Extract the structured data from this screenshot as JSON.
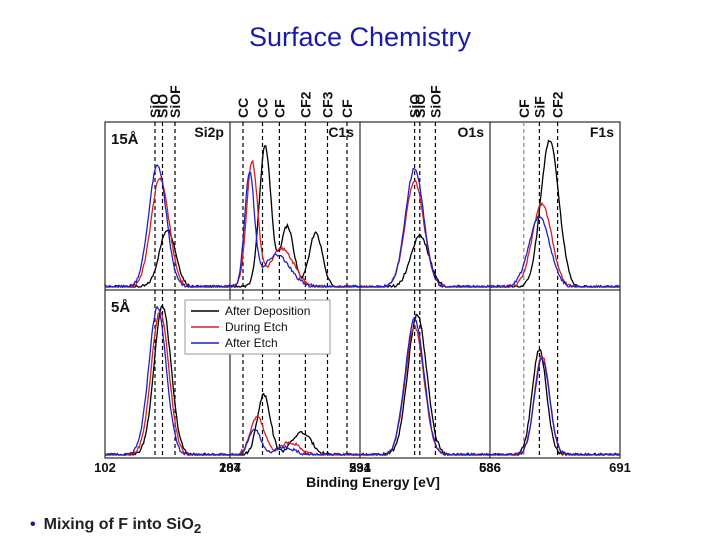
{
  "page_title": "Surface Chemistry",
  "bullet_text": "Mixing of F into SiO",
  "bullet_sub": "2",
  "chart_data": {
    "type": "line",
    "xlabel": "Binding Energy [eV]",
    "colors": {
      "After Deposition": "#000000",
      "During Etch": "#d42020",
      "After Etch": "#2020c8"
    },
    "legend": {
      "placement": "top-left of bottom row",
      "entries": [
        "After Deposition",
        "During Etch",
        "After Etch"
      ]
    },
    "row_labels": [
      "15Å",
      "5Å"
    ],
    "panels": [
      {
        "id": "si2p",
        "label": "Si2p",
        "xlim": [
          102,
          107
        ],
        "ticks": [
          {
            "value": 102,
            "label": "102"
          },
          {
            "value": 107,
            "label": "107"
          }
        ],
        "ref_lines": [
          {
            "x": 104.0,
            "style": "dashed"
          },
          {
            "x": 104.3,
            "style": "dashed"
          },
          {
            "x": 104.8,
            "style": "dashed"
          }
        ],
        "ref_labels": [
          "SiO",
          "SiO",
          "SiOF"
        ],
        "rows": [
          {
            "peaks": [
              {
                "series": "After Deposition",
                "center": 104.5,
                "height": 0.36,
                "width": 0.65
              },
              {
                "series": "During Etch",
                "center": 104.2,
                "height": 0.68,
                "width": 0.72
              },
              {
                "series": "After Etch",
                "center": 104.1,
                "height": 0.76,
                "width": 0.7
              }
            ]
          },
          {
            "peaks": [
              {
                "series": "After Deposition",
                "center": 104.3,
                "height": 0.93,
                "width": 0.68
              },
              {
                "series": "During Etch",
                "center": 104.2,
                "height": 0.9,
                "width": 0.7
              },
              {
                "series": "After Etch",
                "center": 104.1,
                "height": 0.92,
                "width": 0.7
              }
            ]
          }
        ]
      },
      {
        "id": "c1s",
        "label": "C1s",
        "xlim": [
          284,
          294
        ],
        "ticks": [
          {
            "value": 284,
            "label": "284"
          },
          {
            "value": 294,
            "label": "294"
          }
        ],
        "ref_lines": [
          {
            "x": 285.0,
            "style": "dashed"
          },
          {
            "x": 286.5,
            "style": "dashed"
          },
          {
            "x": 287.8,
            "style": "dashed"
          },
          {
            "x": 289.8,
            "style": "dashed"
          },
          {
            "x": 291.5,
            "style": "dashed"
          },
          {
            "x": 293.0,
            "style": "dashed"
          }
        ],
        "ref_labels": [
          "CC",
          "CC",
          "CF",
          "CF2",
          "CF3",
          "CF"
        ],
        "rows": [
          {
            "peaks": [
              {
                "series": "After Deposition",
                "center": 286.7,
                "height": 0.88,
                "width": 0.9
              },
              {
                "series": "After Deposition",
                "center": 288.4,
                "height": 0.38,
                "width": 1.0
              },
              {
                "series": "After Deposition",
                "center": 290.6,
                "height": 0.34,
                "width": 1.0
              },
              {
                "series": "During Etch",
                "center": 285.7,
                "height": 0.78,
                "width": 0.85
              },
              {
                "series": "During Etch",
                "center": 288.0,
                "height": 0.24,
                "width": 1.8
              },
              {
                "series": "After Etch",
                "center": 285.5,
                "height": 0.7,
                "width": 0.75
              },
              {
                "series": "After Etch",
                "center": 287.6,
                "height": 0.2,
                "width": 2.0
              }
            ]
          },
          {
            "peaks": [
              {
                "series": "After Deposition",
                "center": 286.6,
                "height": 0.38,
                "width": 1.0
              },
              {
                "series": "After Deposition",
                "center": 289.5,
                "height": 0.14,
                "width": 1.5
              },
              {
                "series": "During Etch",
                "center": 286.1,
                "height": 0.24,
                "width": 1.1
              },
              {
                "series": "During Etch",
                "center": 288.6,
                "height": 0.08,
                "width": 1.5
              },
              {
                "series": "After Etch",
                "center": 285.9,
                "height": 0.16,
                "width": 0.9
              },
              {
                "series": "After Etch",
                "center": 288.2,
                "height": 0.05,
                "width": 1.5
              }
            ]
          }
        ]
      },
      {
        "id": "o1s",
        "label": "O1s",
        "xlim": [
          531,
          536
        ],
        "ticks": [
          {
            "value": 531,
            "label": "531"
          },
          {
            "value": 536,
            "label": "536"
          }
        ],
        "ref_lines": [
          {
            "x": 533.1,
            "style": "dashed"
          },
          {
            "x": 533.3,
            "style": "dashed"
          },
          {
            "x": 533.9,
            "style": "dashed"
          }
        ],
        "ref_labels": [
          "SiO",
          "SiO",
          "SiOF"
        ],
        "rows": [
          {
            "peaks": [
              {
                "series": "After Deposition",
                "center": 533.3,
                "height": 0.32,
                "width": 0.7
              },
              {
                "series": "During Etch",
                "center": 533.1,
                "height": 0.66,
                "width": 0.72
              },
              {
                "series": "After Etch",
                "center": 533.1,
                "height": 0.74,
                "width": 0.7
              }
            ]
          },
          {
            "peaks": [
              {
                "series": "After Deposition",
                "center": 533.2,
                "height": 0.88,
                "width": 0.72
              },
              {
                "series": "During Etch",
                "center": 533.1,
                "height": 0.8,
                "width": 0.72
              },
              {
                "series": "After Etch",
                "center": 533.1,
                "height": 0.85,
                "width": 0.72
              }
            ]
          }
        ]
      },
      {
        "id": "f1s",
        "label": "F1s",
        "xlim": [
          686,
          691
        ],
        "ticks": [
          {
            "value": 686,
            "label": "686"
          },
          {
            "value": 691,
            "label": "691"
          }
        ],
        "ref_lines": [
          {
            "x": 687.3,
            "style": "dashed-gray"
          },
          {
            "x": 687.9,
            "style": "dashed"
          },
          {
            "x": 688.6,
            "style": "dashed"
          }
        ],
        "ref_labels": [
          "CF",
          "SiF",
          "CF2"
        ],
        "rows": [
          {
            "peaks": [
              {
                "series": "After Deposition",
                "center": 688.3,
                "height": 0.92,
                "width": 0.7
              },
              {
                "series": "During Etch",
                "center": 688.0,
                "height": 0.52,
                "width": 0.75
              },
              {
                "series": "After Etch",
                "center": 687.9,
                "height": 0.44,
                "width": 0.8
              }
            ]
          },
          {
            "peaks": [
              {
                "series": "After Deposition",
                "center": 687.9,
                "height": 0.66,
                "width": 0.55
              },
              {
                "series": "During Etch",
                "center": 688.0,
                "height": 0.62,
                "width": 0.58
              },
              {
                "series": "After Etch",
                "center": 688.0,
                "height": 0.6,
                "width": 0.58
              }
            ]
          }
        ]
      }
    ]
  }
}
